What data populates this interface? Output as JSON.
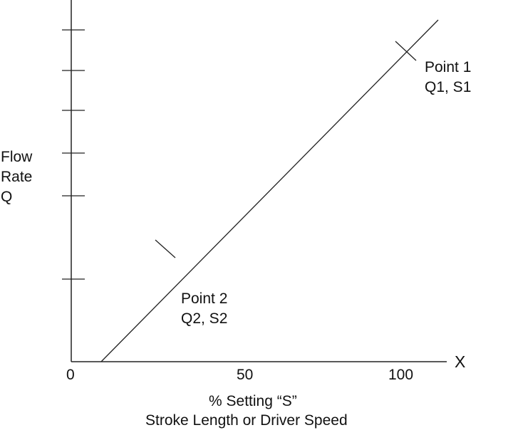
{
  "chart_data": {
    "type": "line",
    "xlabel": [
      "% Setting “S”",
      "Stroke Length or Driver Speed"
    ],
    "ylabel": [
      "Flow",
      "Rate",
      "Q"
    ],
    "x_axis_end_label": "X",
    "x_tick_labels": [
      "0",
      "50",
      "100"
    ],
    "y_tick_count": 6,
    "y_tick_labels": [],
    "grid": false,
    "line_color": "#222222",
    "points": [
      {
        "label": "Point 1",
        "sublabel": "Q1, S1"
      },
      {
        "label": "Point 2",
        "sublabel": "Q2, S2"
      }
    ]
  }
}
